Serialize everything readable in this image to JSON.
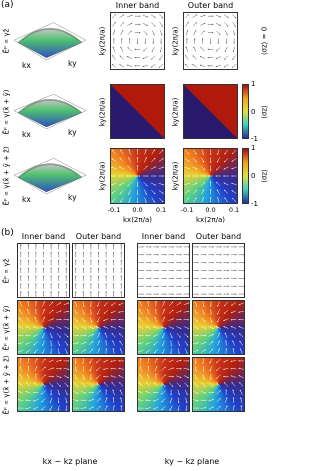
{
  "panel_a": {
    "label": "(a)",
    "columns": [
      "Inner band",
      "Outer band"
    ],
    "rows": [
      {
        "field": "Ēᵖ ∝ γẑ",
        "surface_axes": [
          "kx",
          "ky"
        ],
        "y_axis": "ky(2π/a)",
        "side_label": "⟨σz⟩ = 0"
      },
      {
        "field": "Ēᵖ ∝ γ(x̂ + ŷ)",
        "surface_axes": [
          "kx",
          "ky"
        ],
        "y_axis": "ky(2π/a)",
        "side_label": "⟨σz⟩"
      },
      {
        "field": "Ēᵖ ∝ γ(x̂ + ŷ + ẑ)",
        "surface_axes": [
          "kx",
          "ky"
        ],
        "y_axis": "ky(2π/a)",
        "side_label": "⟨σz⟩"
      }
    ],
    "x_axis": "kx(2π/a)",
    "xticks": [
      "-0.1",
      "0.0",
      "0.1"
    ],
    "colorbar_ticks": [
      1,
      0,
      -1
    ]
  },
  "panel_b": {
    "label": "(b)",
    "columns": [
      "Inner band",
      "Outer band",
      "Inner band",
      "Outer band"
    ],
    "rows": [
      "Ēᵖ ∝ γẑ",
      "Ēᵖ ∝ γ(x̂ + ŷ)",
      "Ēᵖ ∝ γ(x̂ + ŷ + ẑ)"
    ],
    "planes": [
      "kx − kz plane",
      "ky − kz plane"
    ]
  }
}
